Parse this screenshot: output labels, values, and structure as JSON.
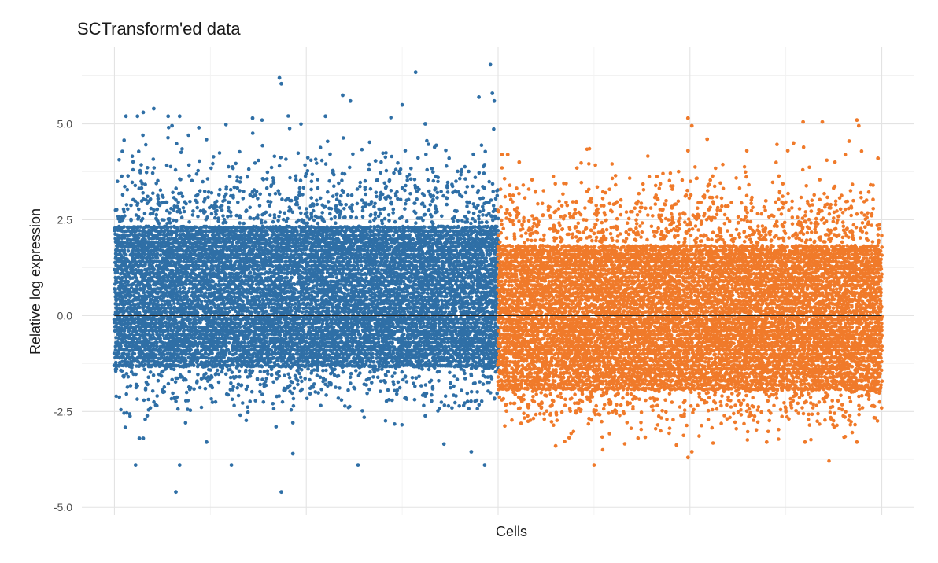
{
  "chart_data": {
    "type": "scatter",
    "title": "SCTransform'ed data",
    "xlabel": "Cells",
    "ylabel": "Relative log expression",
    "ylim": [
      -5.2,
      7.0
    ],
    "yticks": [
      -5.0,
      -2.5,
      0.0,
      2.5,
      5.0
    ],
    "ytick_labels": [
      "-5.0",
      "-2.5",
      "0.0",
      "2.5",
      "5.0"
    ],
    "x_tick_labels_shown": false,
    "grid": true,
    "legend": "none",
    "reference_line_y": 0.0,
    "series": [
      {
        "color": "#2f6fa6",
        "x_range": [
          0,
          2000
        ],
        "typical_range": [
          -1.3,
          2.4
        ],
        "whisker_range": [
          -2.5,
          4.2
        ],
        "outliers": [
          {
            "x": 120,
            "y": 5.2
          },
          {
            "x": 150,
            "y": 5.3
          },
          {
            "x": 205,
            "y": 5.4
          },
          {
            "x": 340,
            "y": 5.2
          },
          {
            "x": 1190,
            "y": 5.75
          },
          {
            "x": 860,
            "y": 6.2
          },
          {
            "x": 870,
            "y": 6.05
          },
          {
            "x": 1570,
            "y": 6.35
          },
          {
            "x": 1960,
            "y": 6.55
          },
          {
            "x": 1970,
            "y": 5.8
          },
          {
            "x": 1900,
            "y": 5.7
          },
          {
            "x": 1980,
            "y": 5.6
          },
          {
            "x": 1500,
            "y": 5.5
          },
          {
            "x": 1620,
            "y": 5.0
          },
          {
            "x": 1230,
            "y": 5.6
          },
          {
            "x": 1100,
            "y": 5.2
          },
          {
            "x": 300,
            "y": 4.95
          },
          {
            "x": 440,
            "y": 4.9
          },
          {
            "x": 720,
            "y": 5.15
          },
          {
            "x": 60,
            "y": 5.2
          },
          {
            "x": 280,
            "y": 5.2
          },
          {
            "x": 110,
            "y": -3.9
          },
          {
            "x": 340,
            "y": -3.9
          },
          {
            "x": 320,
            "y": -4.6
          },
          {
            "x": 870,
            "y": -4.6
          },
          {
            "x": 610,
            "y": -3.9
          },
          {
            "x": 1270,
            "y": -3.9
          },
          {
            "x": 930,
            "y": -3.6
          },
          {
            "x": 1860,
            "y": -3.55
          },
          {
            "x": 1930,
            "y": -3.9
          },
          {
            "x": 130,
            "y": -3.2
          },
          {
            "x": 150,
            "y": -3.2
          },
          {
            "x": 480,
            "y": -3.3
          }
        ]
      },
      {
        "color": "#f07a2a",
        "x_range": [
          2000,
          4000
        ],
        "typical_range": [
          -1.9,
          1.9
        ],
        "whisker_range": [
          -3.0,
          3.6
        ],
        "outliers": [
          {
            "x": 2500,
            "y": -3.9
          },
          {
            "x": 2990,
            "y": -3.7
          },
          {
            "x": 3010,
            "y": -3.55
          },
          {
            "x": 2300,
            "y": -3.4
          },
          {
            "x": 2990,
            "y": 5.15
          },
          {
            "x": 3010,
            "y": 4.95
          },
          {
            "x": 3590,
            "y": 5.05
          },
          {
            "x": 3690,
            "y": 5.05
          },
          {
            "x": 3870,
            "y": 5.1
          },
          {
            "x": 3880,
            "y": 4.95
          },
          {
            "x": 3540,
            "y": 4.5
          },
          {
            "x": 3090,
            "y": 4.6
          },
          {
            "x": 3510,
            "y": 4.3
          },
          {
            "x": 2990,
            "y": 4.3
          },
          {
            "x": 3830,
            "y": 4.55
          },
          {
            "x": 2020,
            "y": 4.2
          },
          {
            "x": 2050,
            "y": 4.2
          },
          {
            "x": 2110,
            "y": 4.0
          },
          {
            "x": 3980,
            "y": 4.1
          },
          {
            "x": 3400,
            "y": -3.3
          },
          {
            "x": 3600,
            "y": -3.3
          },
          {
            "x": 3870,
            "y": -3.3
          }
        ]
      }
    ]
  }
}
